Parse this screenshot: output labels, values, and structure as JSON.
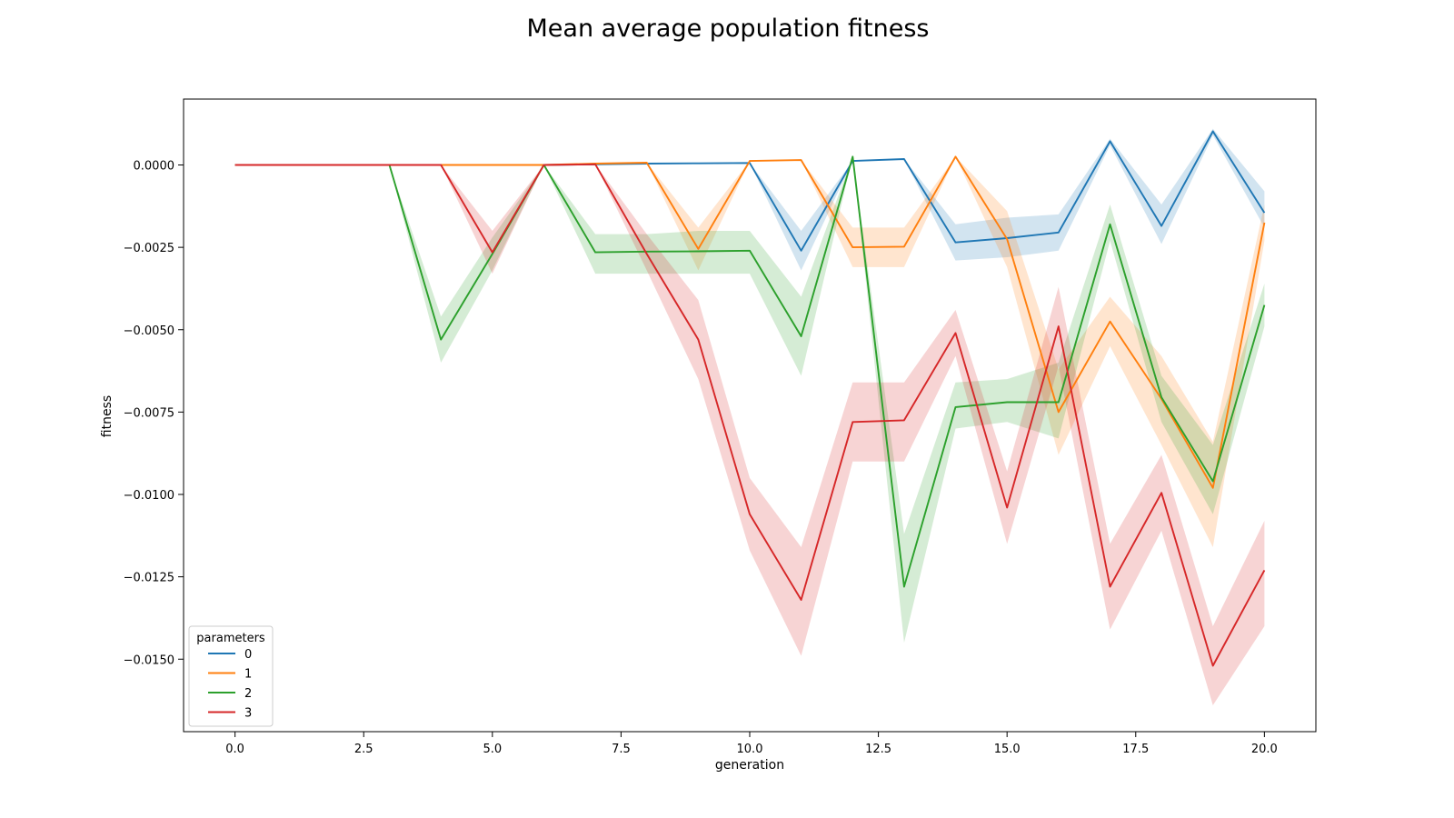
{
  "chart_data": {
    "type": "line",
    "title": "Mean average population fitness",
    "xlabel": "generation",
    "ylabel": "fitness",
    "xlim": [
      -1.0,
      21.0
    ],
    "ylim": [
      -0.0172,
      0.002
    ],
    "xticks": [
      0.0,
      2.5,
      5.0,
      7.5,
      10.0,
      12.5,
      15.0,
      17.5,
      20.0
    ],
    "xtick_labels": [
      "0.0",
      "2.5",
      "5.0",
      "7.5",
      "10.0",
      "12.5",
      "15.0",
      "17.5",
      "20.0"
    ],
    "yticks": [
      0.0,
      -0.0025,
      -0.005,
      -0.0075,
      -0.01,
      -0.0125,
      -0.015
    ],
    "ytick_labels": [
      "0.0000",
      "−0.0025",
      "−0.0050",
      "−0.0075",
      "−0.0100",
      "−0.0125",
      "−0.0150"
    ],
    "grid": false,
    "legend": {
      "title": "parameters",
      "position": "lower-left"
    },
    "x": [
      0,
      1,
      2,
      3,
      4,
      5,
      6,
      7,
      8,
      9,
      10,
      11,
      12,
      13,
      14,
      15,
      16,
      17,
      18,
      19,
      20
    ],
    "series": [
      {
        "name": "0",
        "color": "#1f77b4",
        "values": [
          0,
          0,
          0,
          0,
          0,
          0,
          0,
          2e-05,
          4e-05,
          5e-05,
          6e-05,
          -0.0026,
          0.00012,
          0.00018,
          -0.00235,
          -0.00222,
          -0.00205,
          0.00072,
          -0.00185,
          0.00102,
          -0.00145
        ],
        "ci_lower": [
          0,
          0,
          0,
          0,
          0,
          0,
          0,
          2e-05,
          4e-05,
          5e-05,
          6e-05,
          -0.0032,
          0.00012,
          0.00018,
          -0.0029,
          -0.0028,
          -0.0026,
          0.0006,
          -0.0024,
          0.0009,
          -0.0019
        ],
        "ci_upper": [
          0,
          0,
          0,
          0,
          0,
          0,
          0,
          2e-05,
          4e-05,
          5e-05,
          6e-05,
          -0.002,
          0.00012,
          0.00018,
          -0.0018,
          -0.0016,
          -0.0015,
          0.0008,
          -0.0012,
          0.0011,
          -0.0008
        ]
      },
      {
        "name": "1",
        "color": "#ff7f0e",
        "values": [
          0,
          0,
          0,
          0,
          0,
          0,
          0,
          4e-05,
          7e-05,
          -0.00255,
          0.00012,
          0.00015,
          -0.0025,
          -0.00248,
          0.00025,
          -0.00225,
          -0.0075,
          -0.00475,
          -0.0071,
          -0.0098,
          -0.00175
        ],
        "ci_lower": [
          0,
          0,
          0,
          0,
          0,
          0,
          0,
          4e-05,
          7e-05,
          -0.0032,
          0.00012,
          0.00015,
          -0.0031,
          -0.0031,
          0.00025,
          -0.0031,
          -0.0088,
          -0.0055,
          -0.0085,
          -0.0116,
          -0.0023
        ],
        "ci_upper": [
          0,
          0,
          0,
          0,
          0,
          0,
          0,
          4e-05,
          7e-05,
          -0.0019,
          0.00012,
          0.00015,
          -0.0019,
          -0.0019,
          0.00025,
          -0.0014,
          -0.0062,
          -0.004,
          -0.0058,
          -0.0084,
          -0.0012
        ]
      },
      {
        "name": "2",
        "color": "#2ca02c",
        "values": [
          0,
          0,
          0,
          0,
          -0.0053,
          -0.0027,
          0,
          -0.00265,
          -0.00263,
          -0.00262,
          -0.0026,
          -0.0052,
          0.00025,
          -0.0128,
          -0.00735,
          -0.0072,
          -0.0072,
          -0.0018,
          -0.00705,
          -0.0096,
          -0.00425
        ],
        "ci_lower": [
          0,
          0,
          0,
          0,
          -0.006,
          -0.0032,
          0,
          -0.0033,
          -0.0033,
          -0.0033,
          -0.0033,
          -0.0064,
          0.00025,
          -0.0145,
          -0.008,
          -0.0078,
          -0.0083,
          -0.0023,
          -0.0078,
          -0.0106,
          -0.0049
        ],
        "ci_upper": [
          0,
          0,
          0,
          0,
          -0.0046,
          -0.0022,
          0,
          -0.0021,
          -0.0021,
          -0.002,
          -0.002,
          -0.004,
          0.00025,
          -0.0112,
          -0.0066,
          -0.0065,
          -0.006,
          -0.0012,
          -0.0064,
          -0.0085,
          -0.0036
        ]
      },
      {
        "name": "3",
        "color": "#d62728",
        "values": [
          0,
          0,
          0,
          0,
          0,
          -0.00265,
          0,
          2e-05,
          -0.0027,
          -0.0053,
          -0.0106,
          -0.0132,
          -0.0078,
          -0.00775,
          -0.0051,
          -0.0104,
          -0.0049,
          -0.0128,
          -0.00995,
          -0.0152,
          -0.0123
        ],
        "ci_lower": [
          0,
          0,
          0,
          0,
          0,
          -0.0033,
          0,
          2e-05,
          -0.0032,
          -0.0065,
          -0.0117,
          -0.0149,
          -0.009,
          -0.009,
          -0.0058,
          -0.0115,
          -0.0061,
          -0.0141,
          -0.0111,
          -0.0164,
          -0.014
        ],
        "ci_upper": [
          0,
          0,
          0,
          0,
          0,
          -0.002,
          0,
          2e-05,
          -0.0021,
          -0.0041,
          -0.0095,
          -0.0116,
          -0.0066,
          -0.0066,
          -0.0044,
          -0.0093,
          -0.0037,
          -0.0115,
          -0.0088,
          -0.014,
          -0.0108
        ]
      }
    ]
  }
}
